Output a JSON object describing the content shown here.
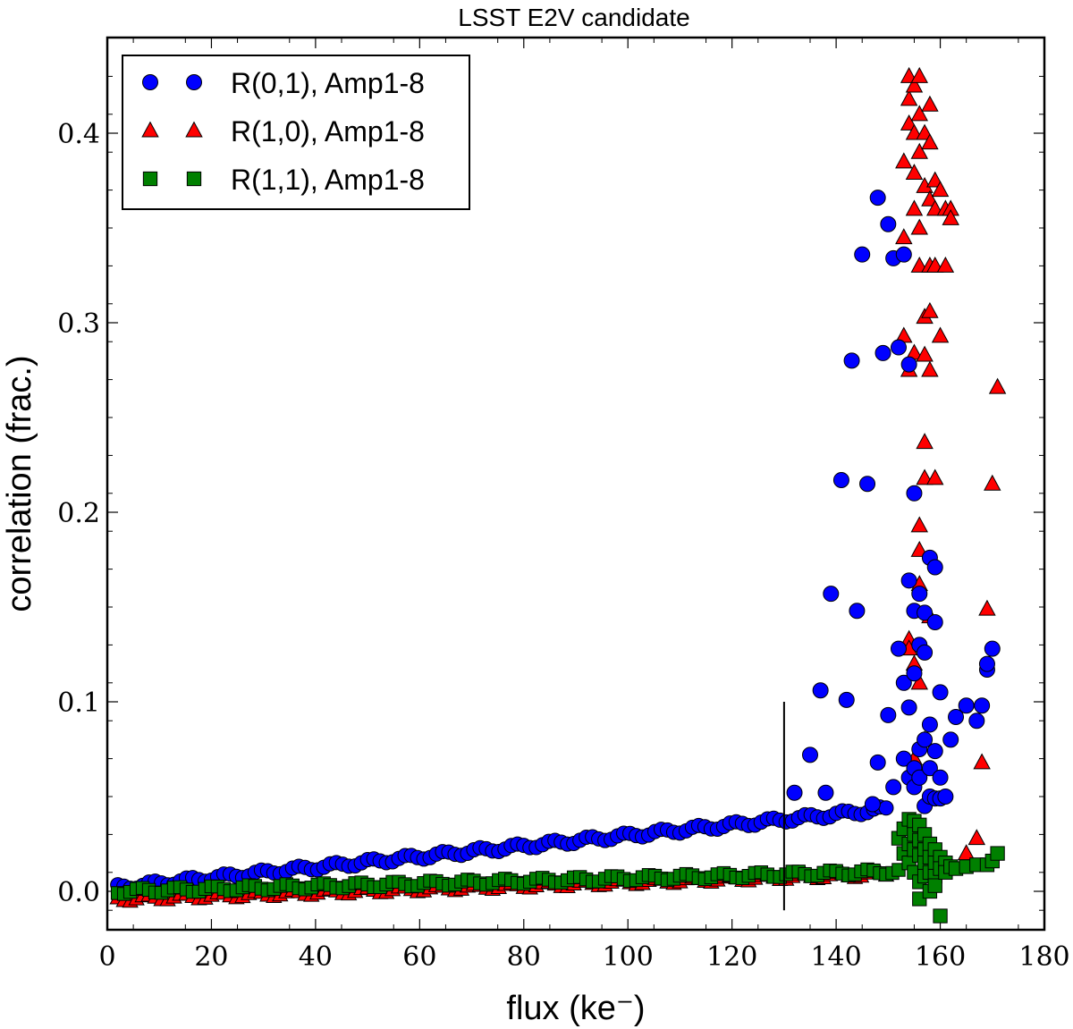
{
  "chart_data": {
    "type": "scatter",
    "title": "LSST E2V candidate",
    "xlabel": "flux (ke⁻)",
    "ylabel": "correlation (frac.)",
    "xlim": [
      0,
      180
    ],
    "ylim": [
      -0.02,
      0.45
    ],
    "x_ticks": [
      0,
      20,
      40,
      60,
      80,
      100,
      120,
      140,
      160,
      180
    ],
    "x_tick_labels": [
      "0",
      "20",
      "40",
      "60",
      "80",
      "100",
      "120",
      "140",
      "160",
      "180"
    ],
    "y_ticks": [
      0.0,
      0.1,
      0.2,
      0.3,
      0.4
    ],
    "y_tick_labels": [
      "0.0",
      "0.1",
      "0.2",
      "0.3",
      "0.4"
    ],
    "grid": false,
    "legend_position": "top-left",
    "vertical_marker": {
      "x": 130,
      "y_range": [
        -0.01,
        0.1
      ]
    },
    "series": [
      {
        "name": "R(0,1), Amp1-8",
        "marker": "circle",
        "color": "#0000ff",
        "trend": {
          "x0": 2,
          "y0": 0.002,
          "slope": 0.00028,
          "x_end": 150
        },
        "points": [
          [
            132,
            0.052
          ],
          [
            135,
            0.072
          ],
          [
            137,
            0.106
          ],
          [
            138,
            0.052
          ],
          [
            139,
            0.157
          ],
          [
            141,
            0.217
          ],
          [
            142,
            0.101
          ],
          [
            143,
            0.28
          ],
          [
            144,
            0.148
          ],
          [
            145,
            0.336
          ],
          [
            146,
            0.215
          ],
          [
            147,
            0.046
          ],
          [
            148,
            0.366
          ],
          [
            148,
            0.068
          ],
          [
            149,
            0.284
          ],
          [
            150,
            0.352
          ],
          [
            150,
            0.093
          ],
          [
            151,
            0.334
          ],
          [
            151,
            0.055
          ],
          [
            152,
            0.287
          ],
          [
            152,
            0.128
          ],
          [
            153,
            0.336
          ],
          [
            153,
            0.11
          ],
          [
            153,
            0.07
          ],
          [
            154,
            0.164
          ],
          [
            154,
            0.278
          ],
          [
            154,
            0.097
          ],
          [
            154,
            0.06
          ],
          [
            155,
            0.148
          ],
          [
            155,
            0.21
          ],
          [
            155,
            0.115
          ],
          [
            155,
            0.065
          ],
          [
            155,
            0.055
          ],
          [
            156,
            0.13
          ],
          [
            156,
            0.157
          ],
          [
            156,
            0.06
          ],
          [
            156,
            0.075
          ],
          [
            157,
            0.147
          ],
          [
            157,
            0.126
          ],
          [
            157,
            0.08
          ],
          [
            157,
            0.045
          ],
          [
            158,
            0.176
          ],
          [
            158,
            0.088
          ],
          [
            158,
            0.065
          ],
          [
            158,
            0.05
          ],
          [
            159,
            0.171
          ],
          [
            159,
            0.074
          ],
          [
            159,
            0.049
          ],
          [
            159,
            0.142
          ],
          [
            160,
            0.105
          ],
          [
            160,
            0.06
          ],
          [
            160,
            0.049
          ],
          [
            161,
            0.05
          ],
          [
            162,
            0.08
          ],
          [
            163,
            0.092
          ],
          [
            165,
            0.098
          ],
          [
            167,
            0.09
          ],
          [
            168,
            0.098
          ],
          [
            169,
            0.117
          ],
          [
            169,
            0.12
          ],
          [
            170,
            0.128
          ]
        ]
      },
      {
        "name": "R(1,0), Amp1-8",
        "marker": "triangle",
        "color": "#ff0000",
        "trend": {
          "x0": 2,
          "y0": -0.004,
          "slope": 9e-05,
          "x_end": 150
        },
        "points": [
          [
            153,
            0.293
          ],
          [
            153,
            0.345
          ],
          [
            153,
            0.385
          ],
          [
            154,
            0.43
          ],
          [
            154,
            0.418
          ],
          [
            154,
            0.405
          ],
          [
            154,
            0.275
          ],
          [
            154,
            0.133
          ],
          [
            154,
            0.128
          ],
          [
            155,
            0.425
          ],
          [
            155,
            0.4
          ],
          [
            155,
            0.379
          ],
          [
            155,
            0.36
          ],
          [
            155,
            0.284
          ],
          [
            155,
            0.12
          ],
          [
            155,
            0.07
          ],
          [
            156,
            0.43
          ],
          [
            156,
            0.41
          ],
          [
            156,
            0.39
          ],
          [
            156,
            0.35
          ],
          [
            156,
            0.33
          ],
          [
            156,
            0.193
          ],
          [
            156,
            0.18
          ],
          [
            156,
            0.162
          ],
          [
            156,
            0.11
          ],
          [
            157,
            0.4
          ],
          [
            157,
            0.372
          ],
          [
            157,
            0.303
          ],
          [
            157,
            0.283
          ],
          [
            157,
            0.237
          ],
          [
            157,
            0.218
          ],
          [
            157,
            0.08
          ],
          [
            158,
            0.415
          ],
          [
            158,
            0.395
          ],
          [
            158,
            0.365
          ],
          [
            158,
            0.33
          ],
          [
            158,
            0.306
          ],
          [
            158,
            0.275
          ],
          [
            158,
            0.145
          ],
          [
            159,
            0.375
          ],
          [
            159,
            0.36
          ],
          [
            159,
            0.33
          ],
          [
            159,
            0.218
          ],
          [
            160,
            0.37
          ],
          [
            160,
            0.293
          ],
          [
            161,
            0.36
          ],
          [
            161,
            0.33
          ],
          [
            162,
            0.36
          ],
          [
            162,
            0.355
          ],
          [
            165,
            0.02
          ],
          [
            167,
            0.028
          ],
          [
            168,
            0.068
          ],
          [
            169,
            0.149
          ],
          [
            170,
            0.215
          ],
          [
            171,
            0.266
          ]
        ]
      },
      {
        "name": "R(1,1), Amp1-8",
        "marker": "square",
        "color": "#008000",
        "trend": {
          "x0": 2,
          "y0": 0.0,
          "slope": 7e-05,
          "x_end": 152
        },
        "points": [
          [
            152,
            0.028
          ],
          [
            153,
            0.02
          ],
          [
            153,
            0.033
          ],
          [
            154,
            0.038
          ],
          [
            154,
            0.025
          ],
          [
            154,
            0.015
          ],
          [
            155,
            0.037
          ],
          [
            155,
            0.03
          ],
          [
            155,
            0.022
          ],
          [
            155,
            0.01
          ],
          [
            156,
            0.035
          ],
          [
            156,
            0.027
          ],
          [
            156,
            0.019
          ],
          [
            156,
            0.005
          ],
          [
            156,
            -0.004
          ],
          [
            157,
            0.03
          ],
          [
            157,
            0.022
          ],
          [
            157,
            0.015
          ],
          [
            157,
            0.008
          ],
          [
            158,
            0.025
          ],
          [
            158,
            0.018
          ],
          [
            158,
            0.01
          ],
          [
            158,
            0.0
          ],
          [
            159,
            0.022
          ],
          [
            159,
            0.015
          ],
          [
            159,
            0.008
          ],
          [
            159,
            0.003
          ],
          [
            160,
            -0.013
          ],
          [
            160,
            0.018
          ],
          [
            160,
            0.012
          ],
          [
            161,
            0.015
          ],
          [
            161,
            0.01
          ],
          [
            162,
            0.013
          ],
          [
            163,
            0.012
          ],
          [
            165,
            0.013
          ],
          [
            167,
            0.014
          ],
          [
            169,
            0.014
          ],
          [
            170,
            0.016
          ],
          [
            171,
            0.02
          ]
        ]
      }
    ]
  }
}
